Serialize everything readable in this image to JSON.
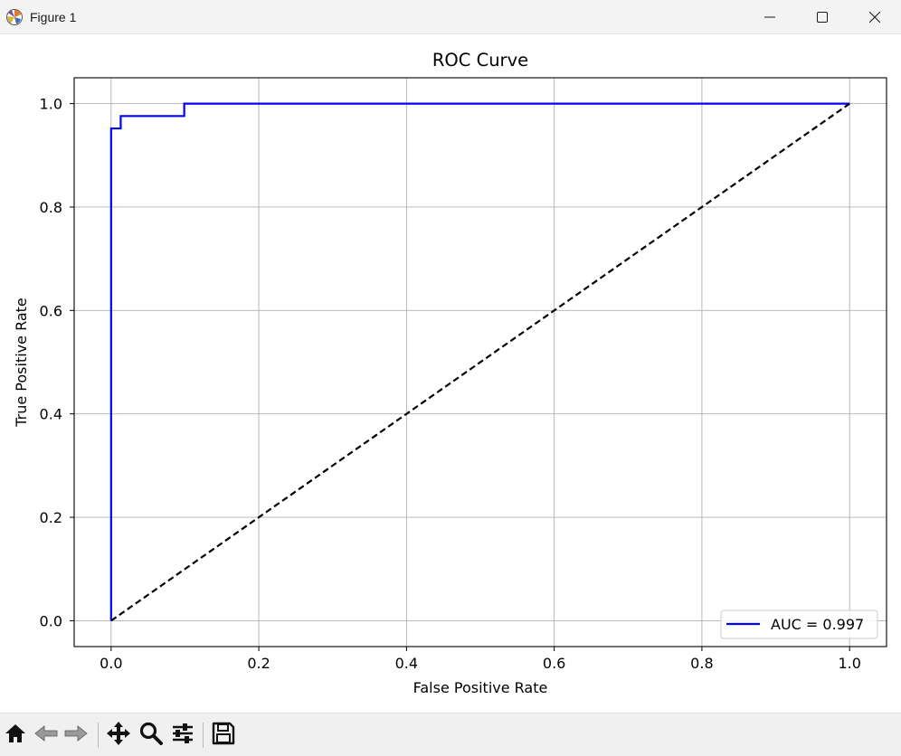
{
  "window": {
    "title": "Figure 1",
    "icons": [
      "matplotlib-logo-icon",
      "minimize-icon",
      "maximize-icon",
      "close-icon"
    ]
  },
  "toolbar": {
    "items": [
      "home-icon",
      "back-icon",
      "forward-icon",
      "pan-icon",
      "zoom-icon",
      "configure-subplots-icon",
      "save-icon"
    ]
  },
  "chart_data": {
    "type": "line",
    "title": "ROC Curve",
    "xlabel": "False Positive Rate",
    "ylabel": "True Positive Rate",
    "xlim": [
      -0.05,
      1.05
    ],
    "ylim": [
      -0.05,
      1.05
    ],
    "xticks": [
      0.0,
      0.2,
      0.4,
      0.6,
      0.8,
      1.0
    ],
    "xtick_labels": [
      "0.0",
      "0.2",
      "0.4",
      "0.6",
      "0.8",
      "1.0"
    ],
    "yticks": [
      0.0,
      0.2,
      0.4,
      0.6,
      0.8,
      1.0
    ],
    "ytick_labels": [
      "0.0",
      "0.2",
      "0.4",
      "0.6",
      "0.8",
      "1.0"
    ],
    "grid": true,
    "legend_position": "lower right",
    "series": [
      {
        "name": "AUC = 0.997",
        "color": "#0000ff",
        "style": "solid",
        "x": [
          0.0,
          0.0,
          0.0,
          0.013,
          0.013,
          0.099,
          0.099,
          1.0
        ],
        "y": [
          0.0,
          0.0,
          0.952,
          0.952,
          0.976,
          0.976,
          1.0,
          1.0
        ]
      },
      {
        "color": "#000000",
        "style": "dashed",
        "x": [
          0.0,
          1.0
        ],
        "y": [
          0.0,
          1.0
        ]
      }
    ]
  }
}
